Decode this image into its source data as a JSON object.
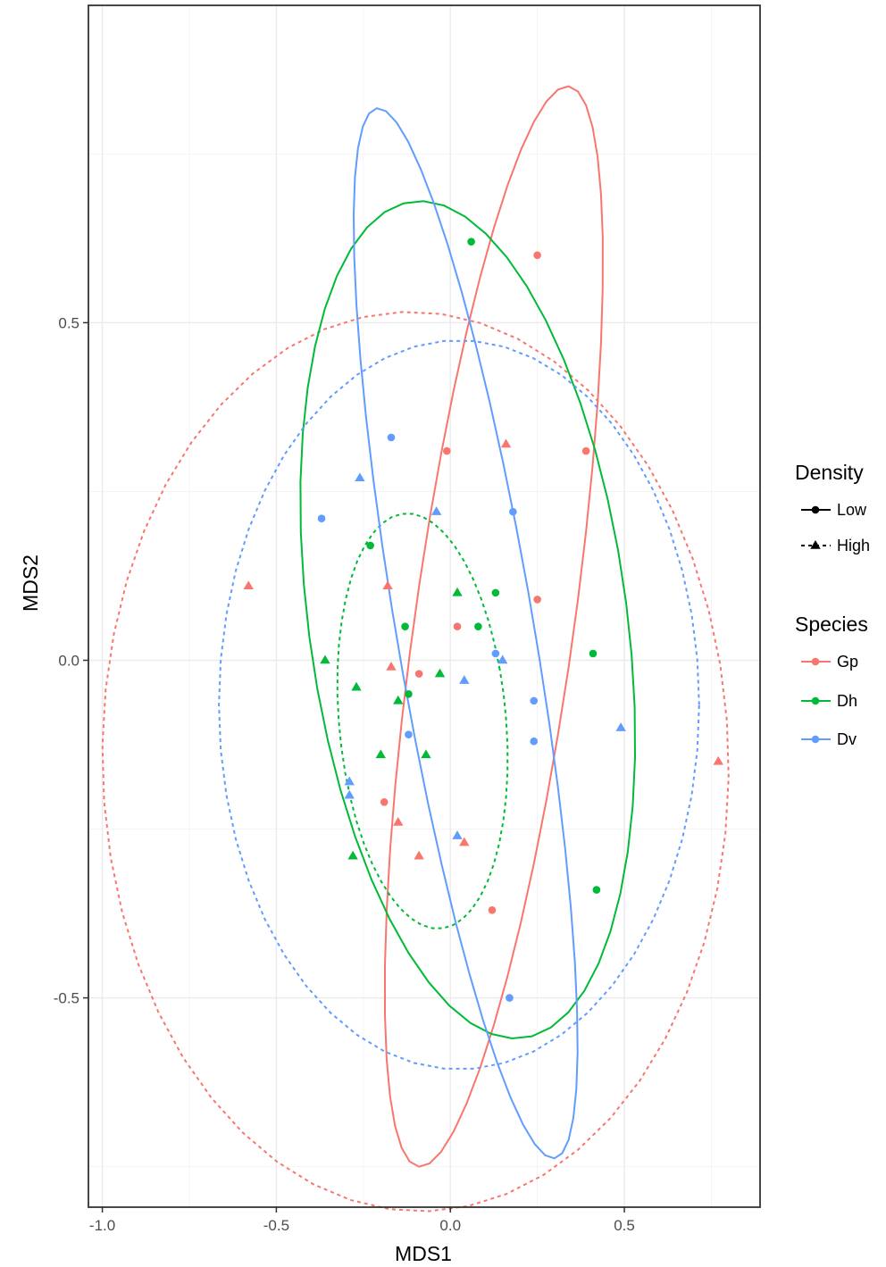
{
  "chart_data": {
    "type": "scatter",
    "title": "",
    "xlabel": "MDS1",
    "ylabel": "MDS2",
    "xlim": [
      -1.04,
      0.89
    ],
    "ylim": [
      -0.81,
      0.97
    ],
    "x_ticks": [
      -1.0,
      -0.5,
      0.0,
      0.5
    ],
    "x_tick_labels": [
      "-1.0",
      "-0.5",
      "0.0",
      "0.5"
    ],
    "y_ticks": [
      -0.5,
      0.0,
      0.5
    ],
    "y_tick_labels": [
      "-0.5",
      "0.0",
      "0.5"
    ],
    "grid": true,
    "legend_position": "right",
    "colors": {
      "Gp": "#F8766D",
      "Dh": "#00BA38",
      "Dv": "#619CFF"
    },
    "legends": [
      {
        "title": "Density",
        "entries": [
          {
            "label": "Low",
            "shape": "circle",
            "line": "solid"
          },
          {
            "label": "High",
            "shape": "triangle",
            "line": "dashed"
          }
        ]
      },
      {
        "title": "Species",
        "entries": [
          {
            "label": "Gp"
          },
          {
            "label": "Dh"
          },
          {
            "label": "Dv"
          }
        ]
      }
    ],
    "points": [
      {
        "x": 0.25,
        "y": 0.6,
        "species": "Gp",
        "density": "Low"
      },
      {
        "x": -0.01,
        "y": 0.31,
        "species": "Gp",
        "density": "Low"
      },
      {
        "x": 0.39,
        "y": 0.31,
        "species": "Gp",
        "density": "Low"
      },
      {
        "x": 0.25,
        "y": 0.09,
        "species": "Gp",
        "density": "Low"
      },
      {
        "x": 0.02,
        "y": 0.05,
        "species": "Gp",
        "density": "Low"
      },
      {
        "x": -0.09,
        "y": -0.02,
        "species": "Gp",
        "density": "Low"
      },
      {
        "x": -0.19,
        "y": -0.21,
        "species": "Gp",
        "density": "Low"
      },
      {
        "x": 0.12,
        "y": -0.37,
        "species": "Gp",
        "density": "Low"
      },
      {
        "x": 0.16,
        "y": 0.32,
        "species": "Gp",
        "density": "High"
      },
      {
        "x": -0.58,
        "y": 0.11,
        "species": "Gp",
        "density": "High"
      },
      {
        "x": -0.18,
        "y": 0.11,
        "species": "Gp",
        "density": "High"
      },
      {
        "x": -0.17,
        "y": -0.01,
        "species": "Gp",
        "density": "High"
      },
      {
        "x": -0.15,
        "y": -0.24,
        "species": "Gp",
        "density": "High"
      },
      {
        "x": 0.04,
        "y": -0.27,
        "species": "Gp",
        "density": "High"
      },
      {
        "x": -0.09,
        "y": -0.29,
        "species": "Gp",
        "density": "High"
      },
      {
        "x": 0.77,
        "y": -0.15,
        "species": "Gp",
        "density": "High"
      },
      {
        "x": 0.06,
        "y": 0.62,
        "species": "Dh",
        "density": "Low"
      },
      {
        "x": -0.23,
        "y": 0.17,
        "species": "Dh",
        "density": "Low"
      },
      {
        "x": 0.13,
        "y": 0.1,
        "species": "Dh",
        "density": "Low"
      },
      {
        "x": -0.13,
        "y": 0.05,
        "species": "Dh",
        "density": "Low"
      },
      {
        "x": 0.08,
        "y": 0.05,
        "species": "Dh",
        "density": "Low"
      },
      {
        "x": 0.41,
        "y": 0.01,
        "species": "Dh",
        "density": "Low"
      },
      {
        "x": -0.12,
        "y": -0.05,
        "species": "Dh",
        "density": "Low"
      },
      {
        "x": 0.42,
        "y": -0.34,
        "species": "Dh",
        "density": "Low"
      },
      {
        "x": 0.02,
        "y": 0.1,
        "species": "Dh",
        "density": "High"
      },
      {
        "x": -0.36,
        "y": 0.0,
        "species": "Dh",
        "density": "High"
      },
      {
        "x": -0.03,
        "y": -0.02,
        "species": "Dh",
        "density": "High"
      },
      {
        "x": -0.27,
        "y": -0.04,
        "species": "Dh",
        "density": "High"
      },
      {
        "x": -0.15,
        "y": -0.06,
        "species": "Dh",
        "density": "High"
      },
      {
        "x": -0.2,
        "y": -0.14,
        "species": "Dh",
        "density": "High"
      },
      {
        "x": -0.07,
        "y": -0.14,
        "species": "Dh",
        "density": "High"
      },
      {
        "x": -0.28,
        "y": -0.29,
        "species": "Dh",
        "density": "High"
      },
      {
        "x": -0.17,
        "y": 0.33,
        "species": "Dv",
        "density": "Low"
      },
      {
        "x": 0.18,
        "y": 0.22,
        "species": "Dv",
        "density": "Low"
      },
      {
        "x": -0.37,
        "y": 0.21,
        "species": "Dv",
        "density": "Low"
      },
      {
        "x": 0.13,
        "y": 0.01,
        "species": "Dv",
        "density": "Low"
      },
      {
        "x": 0.24,
        "y": -0.06,
        "species": "Dv",
        "density": "Low"
      },
      {
        "x": -0.12,
        "y": -0.11,
        "species": "Dv",
        "density": "Low"
      },
      {
        "x": 0.24,
        "y": -0.12,
        "species": "Dv",
        "density": "Low"
      },
      {
        "x": 0.17,
        "y": -0.5,
        "species": "Dv",
        "density": "Low"
      },
      {
        "x": -0.26,
        "y": 0.27,
        "species": "Dv",
        "density": "High"
      },
      {
        "x": -0.04,
        "y": 0.22,
        "species": "Dv",
        "density": "High"
      },
      {
        "x": 0.15,
        "y": 0.0,
        "species": "Dv",
        "density": "High"
      },
      {
        "x": 0.04,
        "y": -0.03,
        "species": "Dv",
        "density": "High"
      },
      {
        "x": 0.49,
        "y": -0.1,
        "species": "Dv",
        "density": "High"
      },
      {
        "x": -0.29,
        "y": -0.18,
        "species": "Dv",
        "density": "High"
      },
      {
        "x": -0.29,
        "y": -0.2,
        "species": "Dv",
        "density": "High"
      },
      {
        "x": 0.02,
        "y": -0.26,
        "species": "Dv",
        "density": "High"
      }
    ],
    "ellipses": [
      {
        "species": "Gp",
        "density": "Low",
        "cx": 0.125,
        "cy": 0.05,
        "rx": 0.223,
        "ry": 0.83,
        "angle": -16
      },
      {
        "species": "Gp",
        "density": "High",
        "cx": -0.1,
        "cy": -0.15,
        "rx": 0.9,
        "ry": 0.666,
        "angle": -1.5
      },
      {
        "species": "Dh",
        "density": "Low",
        "cx": 0.05,
        "cy": 0.06,
        "rx": 0.44,
        "ry": 0.65,
        "angle": 24
      },
      {
        "species": "Dh",
        "density": "High",
        "cx": -0.08,
        "cy": -0.09,
        "rx": 0.235,
        "ry": 0.315,
        "angle": 19
      },
      {
        "species": "Dv",
        "density": "Low",
        "cx": 0.044,
        "cy": 0.04,
        "rx": 0.19,
        "ry": 0.82,
        "angle": 19
      },
      {
        "species": "Dv",
        "density": "High",
        "cx": 0.025,
        "cy": -0.066,
        "rx": 0.69,
        "ry": 0.54,
        "angle": 0
      }
    ]
  }
}
